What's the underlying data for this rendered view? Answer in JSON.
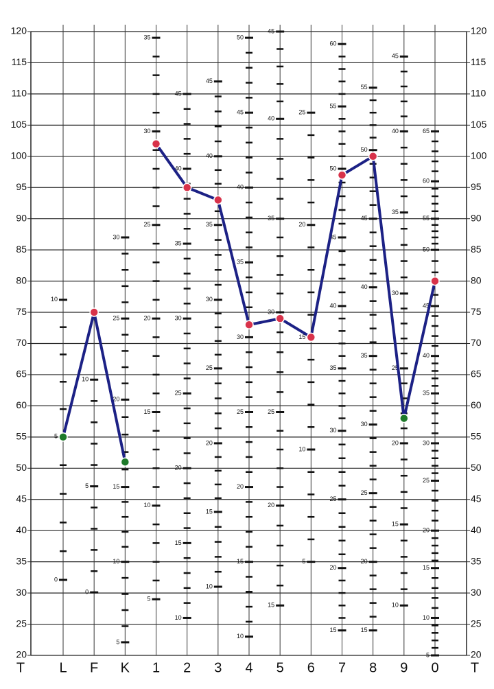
{
  "chart_data": {
    "type": "line",
    "axis_label": "T",
    "categories": [
      "L",
      "F",
      "K",
      "1",
      "2",
      "3",
      "4",
      "5",
      "6",
      "7",
      "8",
      "9",
      "0"
    ],
    "series": [
      {
        "color": "#1c2185",
        "values": [
          55,
          75,
          51,
          null,
          null,
          null,
          null,
          null,
          null,
          null,
          null,
          null,
          null
        ],
        "marker_colors": [
          "#1e7a2a",
          "#d8324a",
          "#1e7a2a",
          null,
          null,
          null,
          null,
          null,
          null,
          null,
          null,
          null,
          null
        ]
      },
      {
        "color": "#1c2185",
        "values": [
          null,
          null,
          null,
          102,
          95,
          93,
          73,
          74,
          71,
          97,
          100,
          58,
          80
        ],
        "marker_colors": [
          null,
          null,
          null,
          "#d8324a",
          "#d8324a",
          "#d8324a",
          "#d8324a",
          "#d8324a",
          "#d8324a",
          "#d8324a",
          "#d8324a",
          "#1e7a2a",
          "#d8324a"
        ]
      }
    ],
    "ylim": [
      20,
      120
    ],
    "yticks": [
      20,
      25,
      30,
      35,
      40,
      45,
      50,
      55,
      60,
      65,
      70,
      75,
      80,
      85,
      90,
      95,
      100,
      105,
      110,
      115,
      120
    ],
    "grid": true,
    "column_scales": [
      [
        {
          "value": 77,
          "label": "10"
        },
        {
          "value": 55.1,
          "label": "5"
        },
        {
          "value": 32.1,
          "label": "0"
        }
      ],
      [
        {
          "value": 64.2,
          "label": "10"
        },
        {
          "value": 47.1,
          "label": "5"
        },
        {
          "value": 30.1,
          "label": "0"
        }
      ],
      [
        {
          "value": 87,
          "label": "30"
        },
        {
          "value": 74,
          "label": "25"
        },
        {
          "value": 61,
          "label": "20"
        },
        {
          "value": 47,
          "label": "15"
        },
        {
          "value": 35,
          "label": "10"
        },
        {
          "value": 22.1,
          "label": "5"
        }
      ],
      [
        {
          "value": 119,
          "label": "35"
        },
        {
          "value": 104,
          "label": "30"
        },
        {
          "value": 89,
          "label": "25"
        },
        {
          "value": 74,
          "label": "20"
        },
        {
          "value": 59,
          "label": "15"
        },
        {
          "value": 44,
          "label": "10"
        },
        {
          "value": 29,
          "label": "5"
        }
      ],
      [
        {
          "value": 110,
          "label": "45"
        },
        {
          "value": 98,
          "label": "40"
        },
        {
          "value": 86,
          "label": "35"
        },
        {
          "value": 74,
          "label": "30"
        },
        {
          "value": 62,
          "label": "25"
        },
        {
          "value": 50,
          "label": "20"
        },
        {
          "value": 38,
          "label": "15"
        },
        {
          "value": 26,
          "label": "10"
        }
      ],
      [
        {
          "value": 112,
          "label": "45"
        },
        {
          "value": 100,
          "label": "40"
        },
        {
          "value": 89,
          "label": "35"
        },
        {
          "value": 77,
          "label": "30"
        },
        {
          "value": 66,
          "label": "25"
        },
        {
          "value": 54,
          "label": "20"
        },
        {
          "value": 43,
          "label": "15"
        },
        {
          "value": 31,
          "label": "10"
        }
      ],
      [
        {
          "value": 119,
          "label": "50"
        },
        {
          "value": 107,
          "label": "45"
        },
        {
          "value": 95,
          "label": "40"
        },
        {
          "value": 83,
          "label": "35"
        },
        {
          "value": 71,
          "label": "30"
        },
        {
          "value": 59,
          "label": "25"
        },
        {
          "value": 47,
          "label": "20"
        },
        {
          "value": 35,
          "label": "15"
        },
        {
          "value": 23,
          "label": "10"
        }
      ],
      [
        {
          "value": 120,
          "label": "45"
        },
        {
          "value": 106,
          "label": "40"
        },
        {
          "value": 90,
          "label": "35"
        },
        {
          "value": 75,
          "label": "30"
        },
        {
          "value": 59,
          "label": "25"
        },
        {
          "value": 44,
          "label": "20"
        },
        {
          "value": 28,
          "label": "15"
        }
      ],
      [
        {
          "value": 107,
          "label": "25"
        },
        {
          "value": 89,
          "label": "20"
        },
        {
          "value": 71,
          "label": "15"
        },
        {
          "value": 53,
          "label": "10"
        },
        {
          "value": 35,
          "label": "5"
        }
      ],
      [
        {
          "value": 118,
          "label": "60"
        },
        {
          "value": 108,
          "label": "55"
        },
        {
          "value": 98,
          "label": "50"
        },
        {
          "value": 87,
          "label": "45"
        },
        {
          "value": 76,
          "label": "40"
        },
        {
          "value": 66,
          "label": "35"
        },
        {
          "value": 56,
          "label": "30"
        },
        {
          "value": 45,
          "label": "25"
        },
        {
          "value": 34,
          "label": "20"
        },
        {
          "value": 24,
          "label": "15"
        }
      ],
      [
        {
          "value": 111,
          "label": "55"
        },
        {
          "value": 101,
          "label": "50"
        },
        {
          "value": 90,
          "label": "45"
        },
        {
          "value": 79,
          "label": "40"
        },
        {
          "value": 68,
          "label": "35"
        },
        {
          "value": 57,
          "label": "30"
        },
        {
          "value": 46,
          "label": "25"
        },
        {
          "value": 35,
          "label": "20"
        },
        {
          "value": 24,
          "label": "15"
        }
      ],
      [
        {
          "value": 116,
          "label": "45"
        },
        {
          "value": 104,
          "label": "40"
        },
        {
          "value": 91,
          "label": "35"
        },
        {
          "value": 78,
          "label": "30"
        },
        {
          "value": 66,
          "label": "25"
        },
        {
          "value": 54,
          "label": "20"
        },
        {
          "value": 41,
          "label": "15"
        },
        {
          "value": 28,
          "label": "10"
        }
      ],
      [
        {
          "value": 104,
          "label": "65"
        },
        {
          "value": 96,
          "label": "60"
        },
        {
          "value": 90,
          "label": "55"
        },
        {
          "value": 85,
          "label": "50"
        },
        {
          "value": 76,
          "label": "45"
        },
        {
          "value": 68,
          "label": "40"
        },
        {
          "value": 62,
          "label": "35"
        },
        {
          "value": 54,
          "label": "30"
        },
        {
          "value": 48,
          "label": "25"
        },
        {
          "value": 40,
          "label": "20"
        },
        {
          "value": 34,
          "label": "15"
        },
        {
          "value": 26,
          "label": "10"
        },
        {
          "value": 20,
          "label": "5"
        }
      ]
    ]
  }
}
